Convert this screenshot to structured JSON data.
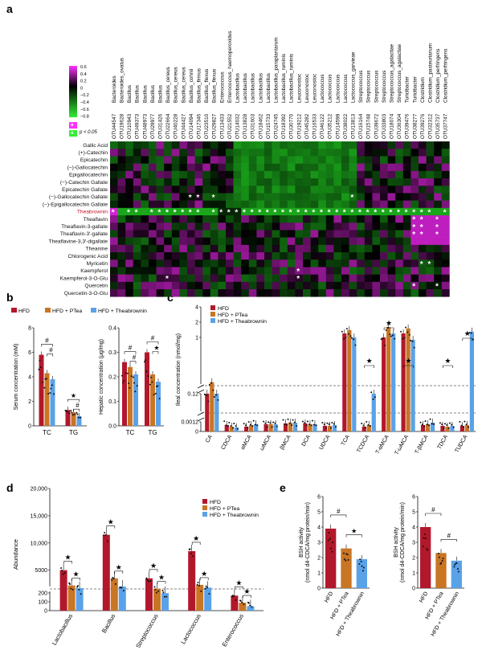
{
  "panels": {
    "a": "a",
    "b": "b",
    "c": "c",
    "d": "d",
    "e": "e"
  },
  "colors": {
    "hfd": "#b2182b",
    "ptea": "#c87524",
    "theabrownin": "#5aa2e8"
  },
  "panel_a": {
    "otus": [
      {
        "id": "OTU44547",
        "genus": "Bacteroides"
      },
      {
        "id": "OTU19628",
        "genus": "Bacteroides_ovatus"
      },
      {
        "id": "OTU10943",
        "genus": "Bacillus"
      },
      {
        "id": "OTU49373",
        "genus": "Bacillus"
      },
      {
        "id": "OTU48973",
        "genus": "Bacillus"
      },
      {
        "id": "OTU29977",
        "genus": "Bacillus"
      },
      {
        "id": "OTU31426",
        "genus": "Bacillus"
      },
      {
        "id": "OTU22664",
        "genus": "Bacillus_cereus"
      },
      {
        "id": "OTU40228",
        "genus": "Bacillus_cereus"
      },
      {
        "id": "OTU44427",
        "genus": "Bacillus_cereus"
      },
      {
        "id": "OTU14094",
        "genus": "Bacillus_cohnii"
      },
      {
        "id": "OTU17346",
        "genus": "Bacillus_firmus"
      },
      {
        "id": "OTU23510",
        "genus": "Bacillus_flexus"
      },
      {
        "id": "OTU29827",
        "genus": "Bacillus_flexus"
      },
      {
        "id": "OTU13433",
        "genus": "Enterococcus"
      },
      {
        "id": "OTU21552",
        "genus": "Enterococcus_haemoperoxidus"
      },
      {
        "id": "OTU14032",
        "genus": "Lactobacillus"
      },
      {
        "id": "OTU13828",
        "genus": "Lactobacillus"
      },
      {
        "id": "OTU31603",
        "genus": "Lactobacillus"
      },
      {
        "id": "OTU18462",
        "genus": "Lactobacillus"
      },
      {
        "id": "OTU15733",
        "genus": "Lactobacillus"
      },
      {
        "id": "OTU24745",
        "genus": "Lactobacillus_paraplantarum"
      },
      {
        "id": "OTU18392",
        "genus": "Lactobacillus_ruminis"
      },
      {
        "id": "OTU30770",
        "genus": "Lactobacillus_ruminis"
      },
      {
        "id": "OTU19212",
        "genus": "Leuconostoc"
      },
      {
        "id": "OTU45282",
        "genus": "Leuconostoc"
      },
      {
        "id": "OTU16533",
        "genus": "Leuconostoc"
      },
      {
        "id": "OTU46122",
        "genus": "Lactococcus"
      },
      {
        "id": "OTU35212",
        "genus": "Lactococcus"
      },
      {
        "id": "OTU14599",
        "genus": "Lactococcus"
      },
      {
        "id": "OTU38022",
        "genus": "Lactococcus"
      },
      {
        "id": "OTU13813",
        "genus": "Lactococcus_garvieae"
      },
      {
        "id": "OTU16164",
        "genus": "Streptococcus"
      },
      {
        "id": "OTU15748",
        "genus": "Streptococcus"
      },
      {
        "id": "OTU39672",
        "genus": "Streptococcus"
      },
      {
        "id": "OTU33803",
        "genus": "Streptococcus"
      },
      {
        "id": "OTU18074",
        "genus": "Streptococcus_agalactiae"
      },
      {
        "id": "OTU36304",
        "genus": "Streptococcus_agalactiae"
      },
      {
        "id": "OTU39476",
        "genus": "Turicibacter"
      },
      {
        "id": "OTU38277",
        "genus": "Turicibacter"
      },
      {
        "id": "OTU39276",
        "genus": "Clostridium"
      },
      {
        "id": "OTU32312",
        "genus": "Clostridium_pasteurianum"
      },
      {
        "id": "OTU35737",
        "genus": "Clostridium_perfringens"
      },
      {
        "id": "OTU37747",
        "genus": "Clostridium_perfringens"
      }
    ],
    "compounds": [
      "Gallic Acid",
      "(+)-Catechin",
      "Epicatechin",
      "(−)-Gallocatechin",
      "Epigallocatechin",
      "(−)-Catechin Gallate",
      "Epicatechin Gallate",
      "(−)-Gallocatechin Gallate",
      "(−)-Epigallocatechin Gallate",
      "Theabrownin",
      "Theaflavin",
      "Theaflavin-3-gallate",
      "Theaflavin-3′-gallate",
      "Theaflavine-3,3′-digallate",
      "Theanine",
      "Chlorogenic Acid",
      "Myricetin",
      "Kaempferol",
      "Kaempferol-3-O-Glu",
      "Quercetin",
      "Quercetin-3-O-Glu"
    ],
    "highlight_row": "Theabrownin",
    "highlight_color": "#c0142b",
    "colorbar_ticks": [
      "0.6",
      "0.4",
      "0.2",
      "0",
      "−0.2",
      "−0.4",
      "−0.6",
      "−0.8"
    ],
    "significance_label": "p < 0.05",
    "star": "*"
  },
  "panel_b": {
    "legend": [
      "HFD",
      "HFD + PTea",
      "HFD + Theabrownin"
    ],
    "charts": [
      {
        "ylabel": "Serum concentration (mM)",
        "ylim": [
          0,
          8
        ],
        "yticks": [
          "0",
          "2",
          "4",
          "6",
          "8"
        ],
        "categories": [
          "TC",
          "TG"
        ],
        "series": [
          {
            "name": "HFD",
            "values": [
              5.8,
              1.3
            ]
          },
          {
            "name": "HFD + PTea",
            "values": [
              4.3,
              1.1
            ]
          },
          {
            "name": "HFD + Theabrownin",
            "values": [
              3.8,
              0.8
            ]
          }
        ],
        "annotations": [
          "#",
          "#",
          "★",
          "#"
        ]
      },
      {
        "ylabel": "Hepatic concentration (μg/mg)",
        "ylim": [
          0,
          0.4
        ],
        "yticks": [
          "0.0",
          "0.1",
          "0.2",
          "0.3",
          "0.4"
        ],
        "categories": [
          "TC",
          "TG"
        ],
        "series": [
          {
            "name": "HFD",
            "values": [
              0.26,
              0.3
            ]
          },
          {
            "name": "HFD + PTea",
            "values": [
              0.24,
              0.21
            ]
          },
          {
            "name": "HFD + Theabrownin",
            "values": [
              0.21,
              0.18
            ]
          }
        ],
        "annotations": [
          "#",
          "#",
          "#",
          "★"
        ]
      }
    ]
  },
  "panel_c": {
    "ylabel": "Ileal concentration (nmol/mg)",
    "yticks": [
      "0",
      "0.0012",
      "0.12",
      "1",
      "2",
      "4"
    ],
    "legend": [
      "HFD",
      "HFD + PTea",
      "HFD + Theabrownin"
    ],
    "categories": [
      "CA",
      "CDCA",
      "αMCA",
      "ωMCA",
      "βMCA",
      "DCA",
      "UDCA",
      "TCA",
      "TCDCA",
      "T-αMCA",
      "T-ωMCA",
      "T-βMCA",
      "TDCA",
      "TUDCA"
    ],
    "series": [
      {
        "name": "HFD",
        "values": [
          0.12,
          0.0008,
          0.0006,
          0.0009,
          0.001,
          0.001,
          0.0007,
          1.2,
          0.0006,
          1.0,
          1.2,
          0.0008,
          0.0007,
          0.0007
        ]
      },
      {
        "name": "HFD + PTea",
        "values": [
          0.13,
          0.0006,
          0.0008,
          0.0009,
          0.0011,
          0.0009,
          0.0007,
          1.4,
          0.0008,
          1.6,
          1.5,
          0.0009,
          0.0006,
          0.0008
        ]
      },
      {
        "name": "HFD + Theabrownin",
        "values": [
          0.12,
          0.0005,
          0.0009,
          0.0009,
          0.0011,
          0.0009,
          0.0008,
          1.0,
          0.12,
          1.2,
          0.9,
          0.0011,
          0.0007,
          1.3
        ]
      }
    ],
    "annotations": [
      "★",
      "★",
      "★",
      "★",
      "★"
    ]
  },
  "panel_d": {
    "ylabel": "Abundance",
    "yticks": [
      "0",
      "100",
      "200",
      "5000",
      "10,000",
      "15,000",
      "20,000"
    ],
    "legend": [
      "HFD",
      "HFD + PTea",
      "HFD + Theabrownin"
    ],
    "categories": [
      "Lactobacillus",
      "Bacillus",
      "Streptococcus",
      "Lactococcus",
      "Enterococcus"
    ],
    "series": [
      {
        "name": "HFD",
        "values": [
          5000,
          11500,
          3500,
          8500,
          170
        ]
      },
      {
        "name": "HFD + PTea",
        "values": [
          2200,
          3500,
          1600,
          2300,
          90
        ]
      },
      {
        "name": "HFD + Theabrownin",
        "values": [
          1700,
          2000,
          800,
          1800,
          50
        ]
      }
    ],
    "annotations": [
      "★",
      "★",
      "★",
      "★",
      "★",
      "★",
      "★",
      "★",
      "★",
      "★"
    ]
  },
  "panel_e": {
    "ylabel": "BSH activity",
    "ylabel2": "(nmol d4-CDCA/mg protein/min)",
    "ylim": [
      0,
      6
    ],
    "yticks": [
      "0",
      "1",
      "2",
      "3",
      "4",
      "5",
      "6"
    ],
    "categories": [
      "HFD",
      "HFD + PTea",
      "HFD + Theabrownin"
    ],
    "charts": [
      {
        "values": [
          3.9,
          2.6,
          1.9
        ],
        "annotations": [
          "#",
          "★"
        ]
      },
      {
        "values": [
          4.0,
          2.3,
          1.8
        ],
        "annotations": [
          "#",
          "#"
        ]
      }
    ]
  },
  "chart_data": [
    {
      "type": "heatmap",
      "panel": "a",
      "title": "",
      "x_categories": "see panel_a.otus",
      "y_categories": "see panel_a.compounds",
      "zlim": [
        -0.8,
        0.6
      ]
    },
    {
      "type": "bar",
      "panel": "b-left",
      "categories": [
        "TC",
        "TG"
      ],
      "ylabel": "Serum concentration (mM)",
      "ylim": [
        0,
        8
      ],
      "series": [
        {
          "name": "HFD",
          "values": [
            5.8,
            1.3
          ]
        },
        {
          "name": "HFD + PTea",
          "values": [
            4.3,
            1.1
          ]
        },
        {
          "name": "HFD + Theabrownin",
          "values": [
            3.8,
            0.8
          ]
        }
      ]
    },
    {
      "type": "bar",
      "panel": "b-right",
      "categories": [
        "TC",
        "TG"
      ],
      "ylabel": "Hepatic concentration (μg/mg)",
      "ylim": [
        0,
        0.4
      ],
      "series": [
        {
          "name": "HFD",
          "values": [
            0.26,
            0.3
          ]
        },
        {
          "name": "HFD + PTea",
          "values": [
            0.24,
            0.21
          ]
        },
        {
          "name": "HFD + Theabrownin",
          "values": [
            0.21,
            0.18
          ]
        }
      ]
    },
    {
      "type": "bar",
      "panel": "c",
      "categories": [
        "CA",
        "CDCA",
        "αMCA",
        "ωMCA",
        "βMCA",
        "DCA",
        "UDCA",
        "TCA",
        "TCDCA",
        "T-αMCA",
        "T-ωMCA",
        "T-βMCA",
        "TDCA",
        "TUDCA"
      ],
      "ylabel": "Ileal concentration (nmol/mg)",
      "series": [
        {
          "name": "HFD",
          "values": [
            0.12,
            0.0008,
            0.0006,
            0.0009,
            0.001,
            0.001,
            0.0007,
            1.2,
            0.0006,
            1.0,
            1.2,
            0.0008,
            0.0007,
            0.0007
          ]
        },
        {
          "name": "HFD + PTea",
          "values": [
            0.13,
            0.0006,
            0.0008,
            0.0009,
            0.0011,
            0.0009,
            0.0007,
            1.4,
            0.0008,
            1.6,
            1.5,
            0.0009,
            0.0006,
            0.0008
          ]
        },
        {
          "name": "HFD + Theabrownin",
          "values": [
            0.12,
            0.0005,
            0.0009,
            0.0009,
            0.0011,
            0.0009,
            0.0008,
            1.0,
            0.12,
            1.2,
            0.9,
            0.0011,
            0.0007,
            1.3
          ]
        }
      ]
    },
    {
      "type": "bar",
      "panel": "d",
      "categories": [
        "Lactobacillus",
        "Bacillus",
        "Streptococcus",
        "Lactococcus",
        "Enterococcus"
      ],
      "ylabel": "Abundance",
      "series": [
        {
          "name": "HFD",
          "values": [
            5000,
            11500,
            3500,
            8500,
            170
          ]
        },
        {
          "name": "HFD + PTea",
          "values": [
            2200,
            3500,
            1600,
            2300,
            90
          ]
        },
        {
          "name": "HFD + Theabrownin",
          "values": [
            1700,
            2000,
            800,
            1800,
            50
          ]
        }
      ]
    },
    {
      "type": "bar",
      "panel": "e-left",
      "categories": [
        "HFD",
        "HFD + PTea",
        "HFD + Theabrownin"
      ],
      "ylabel": "BSH activity (nmol d4-CDCA/mg protein/min)",
      "ylim": [
        0,
        6
      ],
      "values": [
        3.9,
        2.6,
        1.9
      ]
    },
    {
      "type": "bar",
      "panel": "e-right",
      "categories": [
        "HFD",
        "HFD + PTea",
        "HFD + Theabrownin"
      ],
      "ylabel": "BSH activity (nmol d4-CDCA/mg protein/min)",
      "ylim": [
        0,
        6
      ],
      "values": [
        4.0,
        2.3,
        1.8
      ]
    }
  ]
}
